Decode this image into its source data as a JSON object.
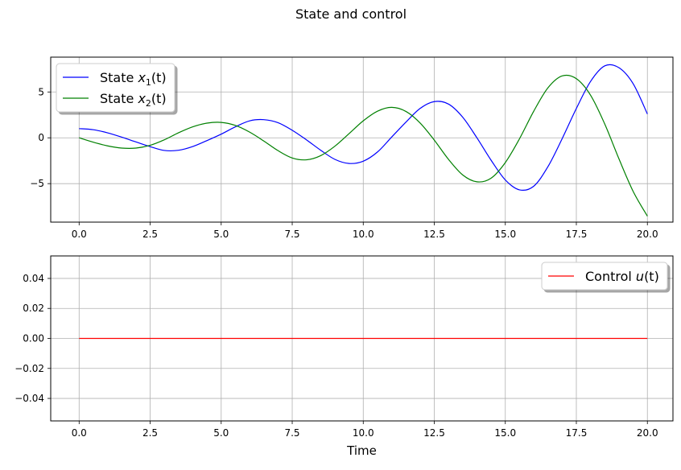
{
  "figure": {
    "title": "State and control"
  },
  "chart_data": [
    {
      "type": "line",
      "title": "",
      "xlabel": "",
      "ylabel": "",
      "xlim": [
        -1.0,
        20.9
      ],
      "ylim": [
        -9.2,
        8.8
      ],
      "xticks": [
        0.0,
        2.5,
        5.0,
        7.5,
        10.0,
        12.5,
        15.0,
        17.5,
        20.0
      ],
      "xtick_labels": [
        "0.0",
        "2.5",
        "5.0",
        "7.5",
        "10.0",
        "12.5",
        "15.0",
        "17.5",
        "20.0"
      ],
      "yticks": [
        -5,
        0,
        5
      ],
      "ytick_labels": [
        "−5",
        "0",
        "5"
      ],
      "grid": true,
      "legend": "upper left",
      "series": [
        {
          "name": "State x1(t)",
          "legend_main": "State ",
          "legend_var": "x",
          "legend_sub": "1",
          "legend_arg": "(t)",
          "color": "#0000ff",
          "x": [
            0.0,
            0.5,
            1.0,
            1.5,
            2.0,
            2.5,
            3.0,
            3.5,
            4.0,
            4.5,
            5.0,
            5.5,
            6.0,
            6.5,
            7.0,
            7.5,
            8.0,
            8.5,
            9.0,
            9.5,
            10.0,
            10.5,
            11.0,
            11.5,
            12.0,
            12.5,
            13.0,
            13.5,
            14.0,
            14.5,
            15.0,
            15.5,
            16.0,
            16.5,
            17.0,
            17.5,
            18.0,
            18.5,
            19.0,
            19.5,
            20.0
          ],
          "y": [
            1.0,
            0.88,
            0.54,
            0.07,
            -0.45,
            -0.96,
            -1.38,
            -1.36,
            -0.95,
            -0.3,
            0.4,
            1.2,
            1.85,
            1.98,
            1.65,
            0.82,
            -0.22,
            -1.35,
            -2.35,
            -2.8,
            -2.55,
            -1.55,
            0.08,
            1.7,
            3.2,
            3.95,
            3.68,
            2.25,
            0.0,
            -2.45,
            -4.6,
            -5.68,
            -5.28,
            -3.15,
            -0.1,
            3.2,
            6.15,
            7.85,
            7.65,
            5.9,
            2.6
          ]
        },
        {
          "name": "State x2(t)",
          "legend_main": "State ",
          "legend_var": "x",
          "legend_sub": "2",
          "legend_arg": "(t)",
          "color": "#008000",
          "x": [
            0.0,
            0.5,
            1.0,
            1.5,
            2.0,
            2.5,
            3.0,
            3.5,
            4.0,
            4.5,
            5.0,
            5.5,
            6.0,
            6.5,
            7.0,
            7.5,
            8.0,
            8.5,
            9.0,
            9.5,
            10.0,
            10.5,
            11.0,
            11.5,
            12.0,
            12.5,
            13.0,
            13.5,
            14.0,
            14.5,
            15.0,
            15.5,
            16.0,
            16.5,
            17.0,
            17.5,
            18.0,
            18.5,
            19.0,
            19.5,
            20.0
          ],
          "y": [
            0.0,
            -0.48,
            -0.88,
            -1.12,
            -1.12,
            -0.82,
            -0.22,
            0.55,
            1.2,
            1.6,
            1.68,
            1.35,
            0.62,
            -0.35,
            -1.4,
            -2.2,
            -2.4,
            -1.95,
            -0.92,
            0.45,
            1.85,
            2.9,
            3.32,
            2.88,
            1.62,
            -0.25,
            -2.35,
            -4.05,
            -4.8,
            -4.4,
            -2.7,
            -0.1,
            2.9,
            5.45,
            6.75,
            6.45,
            4.65,
            1.5,
            -2.3,
            -5.85,
            -8.55
          ]
        }
      ]
    },
    {
      "type": "line",
      "title": "",
      "xlabel": "Time",
      "ylabel": "",
      "xlim": [
        -1.0,
        20.9
      ],
      "ylim": [
        -0.055,
        0.055
      ],
      "xticks": [
        0.0,
        2.5,
        5.0,
        7.5,
        10.0,
        12.5,
        15.0,
        17.5,
        20.0
      ],
      "xtick_labels": [
        "0.0",
        "2.5",
        "5.0",
        "7.5",
        "10.0",
        "12.5",
        "15.0",
        "17.5",
        "20.0"
      ],
      "yticks": [
        -0.04,
        -0.02,
        0.0,
        0.02,
        0.04
      ],
      "ytick_labels": [
        "−0.04",
        "−0.02",
        "0.00",
        "0.02",
        "0.04"
      ],
      "grid": true,
      "legend": "upper right",
      "series": [
        {
          "name": "Control u(t)",
          "legend_main": "Control ",
          "legend_var": "u",
          "legend_sub": "",
          "legend_arg": "(t)",
          "color": "#ff0000",
          "x": [
            0.0,
            20.0
          ],
          "y": [
            0.0,
            0.0
          ]
        }
      ]
    }
  ]
}
